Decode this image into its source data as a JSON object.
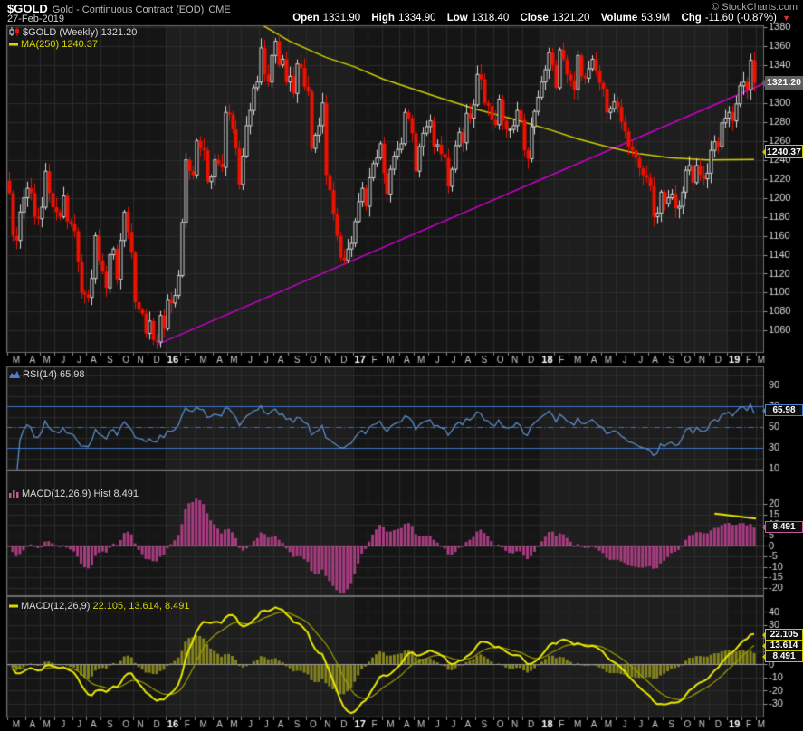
{
  "header": {
    "symbol": "$GOLD",
    "name": "Gold - Continuous Contract (EOD)",
    "exchange": "CME",
    "copyright": "© StockCharts.com",
    "date": "27-Feb-2019",
    "quote": {
      "open": {
        "label": "Open",
        "value": "1331.90"
      },
      "high": {
        "label": "High",
        "value": "1334.90"
      },
      "low": {
        "label": "Low",
        "value": "1318.40"
      },
      "close": {
        "label": "Close",
        "value": "1321.20"
      },
      "volume": {
        "label": "Volume",
        "value": "53.9M"
      },
      "chg": {
        "label": "Chg",
        "value": "-11.60 (-0.87%)"
      },
      "direction_icon": "▼"
    }
  },
  "main_panel": {
    "legend_symbol": "$GOLD (Weekly) 1321.20",
    "legend_ma": "MA(250) 1240.37",
    "price_label": "1321.20",
    "ma_label": "1240.37"
  },
  "rsi_panel": {
    "legend": "RSI(14) 65.98",
    "label": "65.98"
  },
  "hist_panel": {
    "legend": "MACD(12,26,9) Hist 8.491",
    "label": "8.491"
  },
  "macd_panel": {
    "legend_name": "MACD(12,26,9)",
    "legend_values": "22.105, 13.614, 8.491",
    "label_macd": "22.105",
    "label_signal": "13.614",
    "label_hist": "8.491"
  },
  "colors": {
    "candle_up": "#d8d8d8",
    "candle_down": "#ee1100",
    "ma": "#d0d000",
    "trendline": "#cc00cc",
    "rsi": "#5b8cc8",
    "rsi_bands": "#3f74c9",
    "hist_bar": "#a83c80",
    "macd_line": "#e8e800",
    "signal_line": "#9e9e00",
    "macd_hist_bar": "#83831e",
    "band_alt": "#1e1e1e",
    "band_base": "#151515",
    "grid": "#2c2c2c",
    "border": "#6e6e6e",
    "axis_text": "#dcdcdc"
  },
  "chart_data": {
    "type": "candlestick+indicators",
    "symbol": "$GOLD",
    "timeframe": "Weekly",
    "title": "Gold - Continuous Contract (EOD) CME",
    "x_axis": {
      "months": [
        {
          "l": "M",
          "w": 5
        },
        {
          "l": "A",
          "w": 4
        },
        {
          "l": "M",
          "w": 4
        },
        {
          "l": "J",
          "w": 5
        },
        {
          "l": "J",
          "w": 4
        },
        {
          "l": "A",
          "w": 4
        },
        {
          "l": "S",
          "w": 5
        },
        {
          "l": "O",
          "w": 4
        },
        {
          "l": "N",
          "w": 4
        },
        {
          "l": "D",
          "w": 5
        },
        {
          "l": "16",
          "w": 4,
          "y": 1
        },
        {
          "l": "F",
          "w": 4
        },
        {
          "l": "M",
          "w": 5
        },
        {
          "l": "A",
          "w": 4
        },
        {
          "l": "M",
          "w": 4
        },
        {
          "l": "J",
          "w": 5
        },
        {
          "l": "J",
          "w": 4
        },
        {
          "l": "A",
          "w": 4
        },
        {
          "l": "S",
          "w": 5
        },
        {
          "l": "O",
          "w": 4
        },
        {
          "l": "N",
          "w": 4
        },
        {
          "l": "D",
          "w": 5
        },
        {
          "l": "17",
          "w": 4,
          "y": 1
        },
        {
          "l": "F",
          "w": 4
        },
        {
          "l": "M",
          "w": 5
        },
        {
          "l": "A",
          "w": 4
        },
        {
          "l": "M",
          "w": 4
        },
        {
          "l": "J",
          "w": 5
        },
        {
          "l": "J",
          "w": 4
        },
        {
          "l": "A",
          "w": 4
        },
        {
          "l": "S",
          "w": 5
        },
        {
          "l": "O",
          "w": 4
        },
        {
          "l": "N",
          "w": 4
        },
        {
          "l": "D",
          "w": 5
        },
        {
          "l": "18",
          "w": 4,
          "y": 1
        },
        {
          "l": "F",
          "w": 4
        },
        {
          "l": "M",
          "w": 5
        },
        {
          "l": "A",
          "w": 4
        },
        {
          "l": "M",
          "w": 4
        },
        {
          "l": "J",
          "w": 5
        },
        {
          "l": "J",
          "w": 4
        },
        {
          "l": "A",
          "w": 4
        },
        {
          "l": "S",
          "w": 5
        },
        {
          "l": "O",
          "w": 4
        },
        {
          "l": "N",
          "w": 4
        },
        {
          "l": "D",
          "w": 5
        },
        {
          "l": "19",
          "w": 4,
          "y": 1
        },
        {
          "l": "F",
          "w": 4
        },
        {
          "l": "M",
          "w": 0
        }
      ],
      "shaded_year_ranges_weeks": [
        [
          44,
          96
        ],
        [
          148,
          200
        ]
      ]
    },
    "price": {
      "first_open": 1218,
      "closes": [
        1205,
        1160,
        1155,
        1185,
        1200,
        1210,
        1205,
        1180,
        1178,
        1190,
        1228,
        1205,
        1190,
        1185,
        1180,
        1202,
        1175,
        1172,
        1165,
        1132,
        1100,
        1098,
        1095,
        1115,
        1160,
        1134,
        1122,
        1105,
        1140,
        1146,
        1114,
        1155,
        1185,
        1164,
        1142,
        1090,
        1082,
        1078,
        1057,
        1070,
        1050,
        1048,
        1076,
        1062,
        1092,
        1089,
        1097,
        1118,
        1174,
        1240,
        1228,
        1224,
        1260,
        1252,
        1250,
        1217,
        1222,
        1240,
        1236,
        1232,
        1290,
        1288,
        1272,
        1252,
        1214,
        1244,
        1276,
        1292,
        1316,
        1322,
        1358,
        1330,
        1322,
        1350,
        1365,
        1340,
        1346,
        1322,
        1328,
        1310,
        1341,
        1337,
        1317,
        1312,
        1252,
        1266,
        1276,
        1300,
        1224,
        1208,
        1183,
        1160,
        1137,
        1134,
        1146,
        1152,
        1175,
        1196,
        1210,
        1191,
        1221,
        1236,
        1242,
        1257,
        1226,
        1204,
        1230,
        1244,
        1251,
        1257,
        1290,
        1284,
        1268,
        1228,
        1254,
        1268,
        1275,
        1281,
        1254,
        1256,
        1246,
        1242,
        1212,
        1230,
        1255,
        1269,
        1258,
        1289,
        1284,
        1298,
        1330,
        1325,
        1300,
        1297,
        1282,
        1277,
        1304,
        1281,
        1272,
        1272,
        1276,
        1292,
        1282,
        1250,
        1241,
        1275,
        1291,
        1306,
        1322,
        1335,
        1353,
        1340,
        1316,
        1356,
        1346,
        1330,
        1324,
        1314,
        1350,
        1328,
        1326,
        1336,
        1346,
        1334,
        1321,
        1315,
        1290,
        1294,
        1301,
        1296,
        1280,
        1270,
        1254,
        1250,
        1242,
        1231,
        1224,
        1221,
        1212,
        1180,
        1184,
        1206,
        1194,
        1200,
        1204,
        1189,
        1191,
        1206,
        1229,
        1234,
        1216,
        1234,
        1224,
        1220,
        1226,
        1250,
        1259,
        1254,
        1279,
        1284,
        1290,
        1281,
        1299,
        1318,
        1322,
        1314,
        1345,
        1321.2
      ],
      "last_close": 1321.2,
      "ylim": [
        1037,
        1381.3
      ],
      "grid_step": 20,
      "axis_label_min": 1060,
      "axis_label_max": 1380
    },
    "ma250": {
      "period": 250,
      "last_value": 1240.37,
      "anchors": [
        [
          69,
          1385
        ],
        [
          78,
          1365
        ],
        [
          88,
          1348
        ],
        [
          96,
          1338
        ],
        [
          104,
          1325
        ],
        [
          112,
          1315
        ],
        [
          120,
          1305
        ],
        [
          130,
          1293
        ],
        [
          140,
          1283
        ],
        [
          150,
          1272
        ],
        [
          158,
          1262
        ],
        [
          166,
          1254
        ],
        [
          174,
          1247
        ],
        [
          184,
          1242
        ],
        [
          194,
          1240
        ],
        [
          207,
          1240.4
        ]
      ]
    },
    "trendline": {
      "from_week": 41,
      "from_value": 1045,
      "to_week": 209.5,
      "to_value": 1320
    },
    "rsi": {
      "period": 14,
      "last_value": 65.98,
      "overbought": 70,
      "oversold": 30,
      "midline": 50,
      "ylim": [
        9,
        108
      ],
      "grid_step": 10,
      "axis_labels": [
        10,
        30,
        50,
        70,
        90
      ]
    },
    "macd": {
      "fast": 12,
      "slow": 26,
      "signal": 9,
      "last_macd": 22.105,
      "last_signal": 13.614,
      "last_hist": 8.491,
      "hist_panel": {
        "ylim": [
          -23.6,
          35.6
        ],
        "grid_step": 5,
        "axis_min": -20,
        "axis_max": 20,
        "annotation_line": {
          "from": [
            196,
            15.3
          ],
          "to": [
            207.5,
            13.0
          ]
        }
      },
      "line_panel": {
        "ylim": [
          -40,
          51.7
        ],
        "grid_step": 10,
        "axis_min": -30,
        "axis_max": 40
      }
    }
  }
}
